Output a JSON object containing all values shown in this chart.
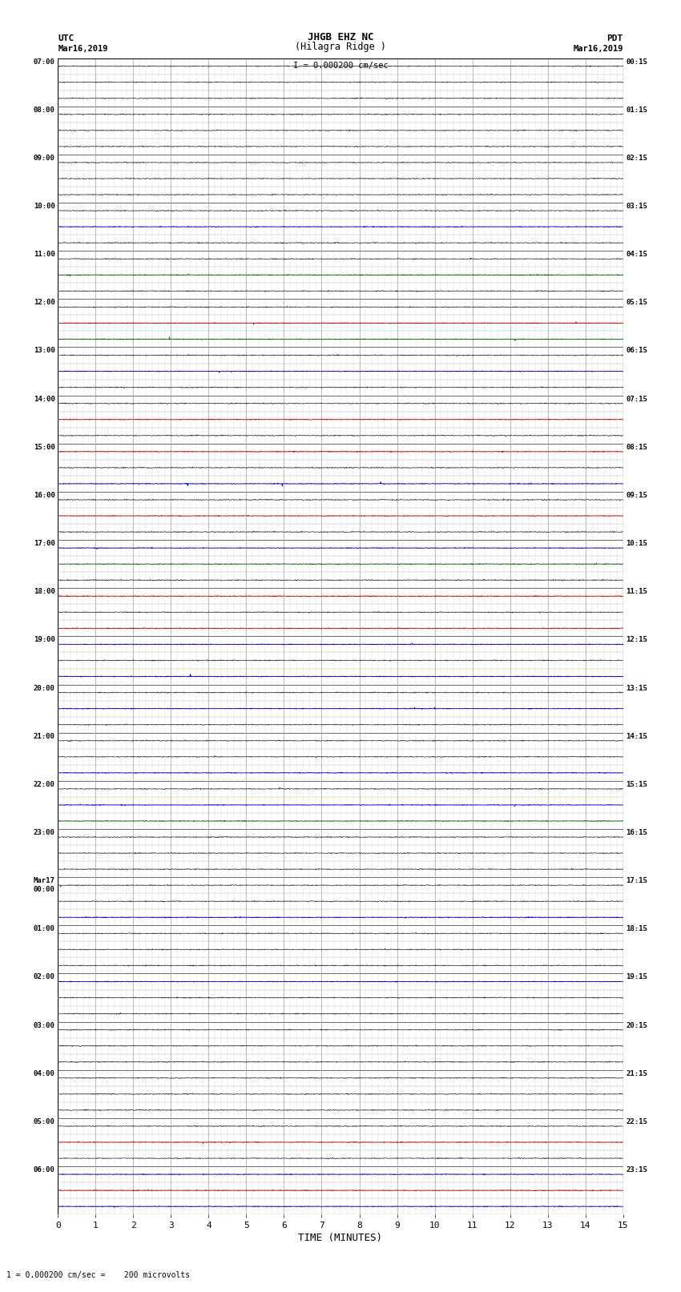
{
  "title_line1": "JHGB EHZ NC",
  "title_line2": "(Hilagra Ridge )",
  "scale_label": "I = 0.000200 cm/sec",
  "xlabel": "TIME (MINUTES)",
  "footer": "1 = 0.000200 cm/sec =    200 microvolts",
  "utc_labels": [
    "07:00",
    "",
    "",
    "08:00",
    "",
    "",
    "09:00",
    "",
    "",
    "10:00",
    "",
    "",
    "11:00",
    "",
    "",
    "12:00",
    "",
    "",
    "13:00",
    "",
    "",
    "14:00",
    "",
    "",
    "15:00",
    "",
    "",
    "16:00",
    "",
    "",
    "17:00",
    "",
    "",
    "18:00",
    "",
    "",
    "19:00",
    "",
    "",
    "20:00",
    "",
    "",
    "21:00",
    "",
    "",
    "22:00",
    "",
    "",
    "23:00",
    "",
    "",
    "Mar17\n00:00",
    "",
    "",
    "01:00",
    "",
    "",
    "02:00",
    "",
    "",
    "03:00",
    "",
    "",
    "04:00",
    "",
    "",
    "05:00",
    "",
    "",
    "06:00",
    "",
    ""
  ],
  "pdt_labels": [
    "00:15",
    "",
    "",
    "01:15",
    "",
    "",
    "02:15",
    "",
    "",
    "03:15",
    "",
    "",
    "04:15",
    "",
    "",
    "05:15",
    "",
    "",
    "06:15",
    "",
    "",
    "07:15",
    "",
    "",
    "08:15",
    "",
    "",
    "09:15",
    "",
    "",
    "10:15",
    "",
    "",
    "11:15",
    "",
    "",
    "12:15",
    "",
    "",
    "13:15",
    "",
    "",
    "14:15",
    "",
    "",
    "15:15",
    "",
    "",
    "16:15",
    "",
    "",
    "17:15",
    "",
    "",
    "18:15",
    "",
    "",
    "19:15",
    "",
    "",
    "20:15",
    "",
    "",
    "21:15",
    "",
    "",
    "22:15",
    "",
    "",
    "23:15",
    "",
    ""
  ],
  "n_rows": 72,
  "background_color": "#ffffff",
  "line_color_normal": "#000000",
  "line_color_red": "#cc0000",
  "line_color_blue": "#0000cc",
  "line_color_green": "#006400",
  "grid_color": "#888888",
  "colored_rows": {
    "10": "blue",
    "13": "green",
    "16": "red",
    "17": "green",
    "19": "blue",
    "22": "red",
    "24": "red",
    "26": "blue",
    "28": "red",
    "30": "blue",
    "31": "green",
    "33": "red",
    "35": "red",
    "36": "blue",
    "38": "blue",
    "40": "blue",
    "44": "blue",
    "46": "blue",
    "47": "green",
    "53": "blue",
    "57": "blue",
    "67": "red",
    "69": "blue",
    "70": "red",
    "71": "blue"
  },
  "flat_rows": {
    "22": "red",
    "28": "red",
    "36": "blue",
    "40": "blue"
  }
}
